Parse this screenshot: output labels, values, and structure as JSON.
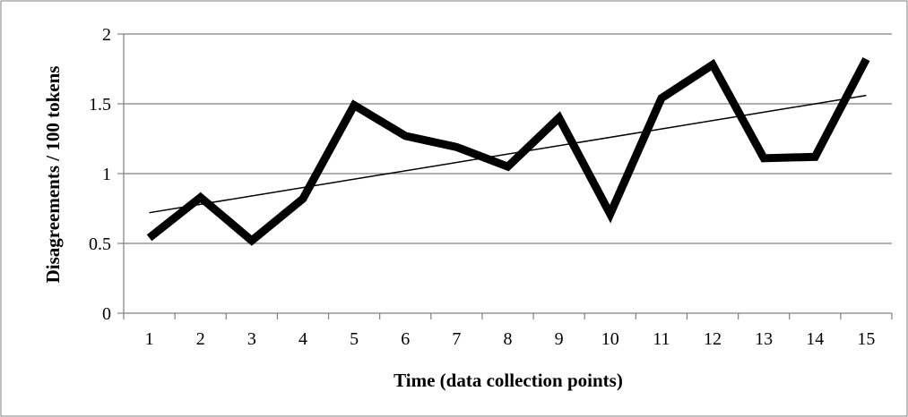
{
  "chart_data": {
    "type": "line",
    "title": "",
    "xlabel": "Time (data collection points)",
    "ylabel": "Disagreements / 100 tokens",
    "categories": [
      "1",
      "2",
      "3",
      "4",
      "5",
      "6",
      "7",
      "8",
      "9",
      "10",
      "11",
      "12",
      "13",
      "14",
      "15"
    ],
    "series": [
      {
        "values": [
          0.54,
          0.83,
          0.52,
          0.82,
          1.49,
          1.27,
          1.19,
          1.05,
          1.4,
          0.71,
          1.54,
          1.78,
          1.11,
          1.12,
          1.82
        ],
        "color": "#000000"
      }
    ],
    "trendline": {
      "type": "linear",
      "start": 0.72,
      "end": 1.56,
      "color": "#000000"
    },
    "yticks": [
      "0",
      "0.5",
      "1",
      "1.5",
      "2"
    ],
    "ylim": [
      0,
      2
    ],
    "grid": true,
    "legend": "none",
    "colors": {
      "gridline": "#808080",
      "border": "#808080",
      "line": "#000000"
    }
  }
}
